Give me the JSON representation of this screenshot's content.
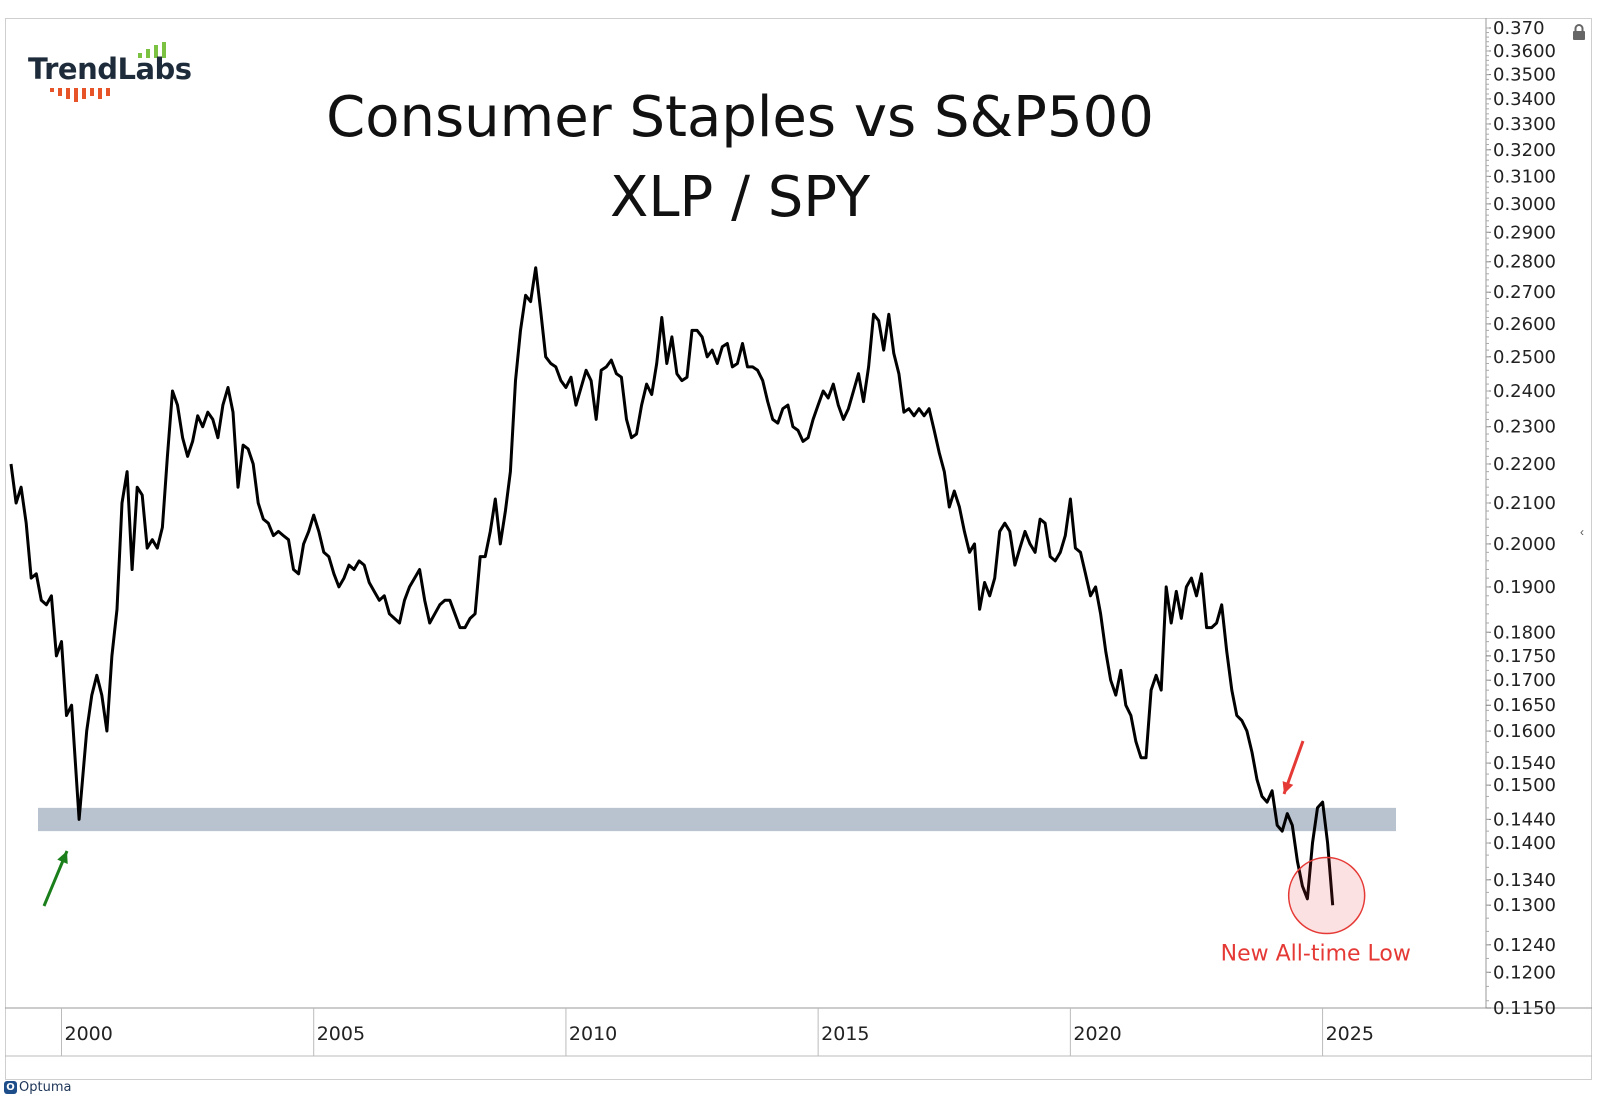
{
  "brand": {
    "logo_text": "TrendLabs",
    "footer": "Optuma"
  },
  "title": {
    "line1": "Consumer Staples vs S&P500",
    "line2": "XLP / SPY"
  },
  "colors": {
    "line": "#000000",
    "band": "#b9c3cf",
    "highlight_red": "#e53935",
    "arrow_green": "#1a7f1a",
    "logo_bars_green": "#7cc242",
    "logo_bars_orange": "#e8542a"
  },
  "icons": {
    "lock": "lock-icon",
    "collapse": "chevron-left-icon"
  },
  "annotations": {
    "all_time_low": "New All-time Low"
  },
  "chart_data": {
    "type": "line",
    "title": "Consumer Staples vs S&P500 XLP / SPY",
    "y_scale": "log",
    "ylim": [
      0.115,
      0.37
    ],
    "xlim": [
      1998.9,
      2028.2
    ],
    "x_ticks": [
      "2000",
      "2005",
      "2010",
      "2015",
      "2020",
      "2025"
    ],
    "y_ticks": [
      "0.370",
      "0.3600",
      "0.3500",
      "0.3400",
      "0.3300",
      "0.3200",
      "0.3100",
      "0.3000",
      "0.2900",
      "0.2800",
      "0.2700",
      "0.2600",
      "0.2500",
      "0.2400",
      "0.2300",
      "0.2200",
      "0.2100",
      "0.2000",
      "0.1900",
      "0.1800",
      "0.1750",
      "0.1700",
      "0.1650",
      "0.1600",
      "0.1540",
      "0.1500",
      "0.1440",
      "0.1400",
      "0.1340",
      "0.1300",
      "0.1240",
      "0.1200",
      "0.1150"
    ],
    "grid": false,
    "support_band": [
      0.142,
      0.146
    ],
    "series": [
      {
        "points": [
          [
            1999.0,
            0.22
          ],
          [
            1999.1,
            0.21
          ],
          [
            1999.2,
            0.214
          ],
          [
            1999.3,
            0.205
          ],
          [
            1999.4,
            0.192
          ],
          [
            1999.5,
            0.193
          ],
          [
            1999.6,
            0.187
          ],
          [
            1999.7,
            0.186
          ],
          [
            1999.8,
            0.188
          ],
          [
            1999.9,
            0.175
          ],
          [
            2000.0,
            0.178
          ],
          [
            2000.1,
            0.163
          ],
          [
            2000.2,
            0.165
          ],
          [
            2000.35,
            0.144
          ],
          [
            2000.5,
            0.16
          ],
          [
            2000.6,
            0.167
          ],
          [
            2000.7,
            0.171
          ],
          [
            2000.8,
            0.167
          ],
          [
            2000.9,
            0.16
          ],
          [
            2001.0,
            0.175
          ],
          [
            2001.1,
            0.185
          ],
          [
            2001.2,
            0.21
          ],
          [
            2001.3,
            0.218
          ],
          [
            2001.4,
            0.194
          ],
          [
            2001.5,
            0.214
          ],
          [
            2001.6,
            0.212
          ],
          [
            2001.7,
            0.199
          ],
          [
            2001.8,
            0.201
          ],
          [
            2001.9,
            0.199
          ],
          [
            2002.0,
            0.204
          ],
          [
            2002.1,
            0.222
          ],
          [
            2002.2,
            0.24
          ],
          [
            2002.3,
            0.236
          ],
          [
            2002.4,
            0.227
          ],
          [
            2002.5,
            0.222
          ],
          [
            2002.6,
            0.226
          ],
          [
            2002.7,
            0.233
          ],
          [
            2002.8,
            0.23
          ],
          [
            2002.9,
            0.234
          ],
          [
            2003.0,
            0.232
          ],
          [
            2003.1,
            0.227
          ],
          [
            2003.2,
            0.236
          ],
          [
            2003.3,
            0.241
          ],
          [
            2003.4,
            0.234
          ],
          [
            2003.5,
            0.214
          ],
          [
            2003.6,
            0.225
          ],
          [
            2003.7,
            0.224
          ],
          [
            2003.8,
            0.22
          ],
          [
            2003.9,
            0.21
          ],
          [
            2004.0,
            0.206
          ],
          [
            2004.1,
            0.205
          ],
          [
            2004.2,
            0.202
          ],
          [
            2004.3,
            0.203
          ],
          [
            2004.4,
            0.202
          ],
          [
            2004.5,
            0.201
          ],
          [
            2004.6,
            0.194
          ],
          [
            2004.7,
            0.193
          ],
          [
            2004.8,
            0.2
          ],
          [
            2004.9,
            0.203
          ],
          [
            2005.0,
            0.207
          ],
          [
            2005.1,
            0.203
          ],
          [
            2005.2,
            0.198
          ],
          [
            2005.3,
            0.197
          ],
          [
            2005.4,
            0.193
          ],
          [
            2005.5,
            0.19
          ],
          [
            2005.6,
            0.192
          ],
          [
            2005.7,
            0.195
          ],
          [
            2005.8,
            0.194
          ],
          [
            2005.9,
            0.196
          ],
          [
            2006.0,
            0.195
          ],
          [
            2006.1,
            0.191
          ],
          [
            2006.2,
            0.189
          ],
          [
            2006.3,
            0.187
          ],
          [
            2006.4,
            0.188
          ],
          [
            2006.5,
            0.184
          ],
          [
            2006.6,
            0.183
          ],
          [
            2006.7,
            0.182
          ],
          [
            2006.8,
            0.187
          ],
          [
            2006.9,
            0.19
          ],
          [
            2007.0,
            0.192
          ],
          [
            2007.1,
            0.194
          ],
          [
            2007.2,
            0.187
          ],
          [
            2007.3,
            0.182
          ],
          [
            2007.4,
            0.184
          ],
          [
            2007.5,
            0.186
          ],
          [
            2007.6,
            0.187
          ],
          [
            2007.7,
            0.187
          ],
          [
            2007.8,
            0.184
          ],
          [
            2007.9,
            0.181
          ],
          [
            2008.0,
            0.181
          ],
          [
            2008.1,
            0.183
          ],
          [
            2008.2,
            0.184
          ],
          [
            2008.3,
            0.197
          ],
          [
            2008.4,
            0.197
          ],
          [
            2008.5,
            0.203
          ],
          [
            2008.6,
            0.211
          ],
          [
            2008.7,
            0.2
          ],
          [
            2008.8,
            0.208
          ],
          [
            2008.9,
            0.218
          ],
          [
            2009.0,
            0.243
          ],
          [
            2009.1,
            0.258
          ],
          [
            2009.2,
            0.269
          ],
          [
            2009.3,
            0.267
          ],
          [
            2009.4,
            0.278
          ],
          [
            2009.5,
            0.264
          ],
          [
            2009.6,
            0.25
          ],
          [
            2009.7,
            0.248
          ],
          [
            2009.8,
            0.247
          ],
          [
            2009.9,
            0.243
          ],
          [
            2010.0,
            0.241
          ],
          [
            2010.1,
            0.244
          ],
          [
            2010.2,
            0.236
          ],
          [
            2010.3,
            0.241
          ],
          [
            2010.4,
            0.246
          ],
          [
            2010.5,
            0.243
          ],
          [
            2010.6,
            0.232
          ],
          [
            2010.7,
            0.246
          ],
          [
            2010.8,
            0.247
          ],
          [
            2010.9,
            0.249
          ],
          [
            2011.0,
            0.245
          ],
          [
            2011.1,
            0.244
          ],
          [
            2011.2,
            0.232
          ],
          [
            2011.3,
            0.227
          ],
          [
            2011.4,
            0.228
          ],
          [
            2011.5,
            0.236
          ],
          [
            2011.6,
            0.242
          ],
          [
            2011.7,
            0.239
          ],
          [
            2011.8,
            0.248
          ],
          [
            2011.9,
            0.262
          ],
          [
            2012.0,
            0.248
          ],
          [
            2012.1,
            0.256
          ],
          [
            2012.2,
            0.245
          ],
          [
            2012.3,
            0.243
          ],
          [
            2012.4,
            0.244
          ],
          [
            2012.5,
            0.258
          ],
          [
            2012.6,
            0.258
          ],
          [
            2012.7,
            0.256
          ],
          [
            2012.8,
            0.25
          ],
          [
            2012.9,
            0.252
          ],
          [
            2013.0,
            0.248
          ],
          [
            2013.1,
            0.253
          ],
          [
            2013.2,
            0.254
          ],
          [
            2013.3,
            0.247
          ],
          [
            2013.4,
            0.248
          ],
          [
            2013.5,
            0.254
          ],
          [
            2013.6,
            0.247
          ],
          [
            2013.7,
            0.247
          ],
          [
            2013.8,
            0.246
          ],
          [
            2013.9,
            0.243
          ],
          [
            2014.0,
            0.237
          ],
          [
            2014.1,
            0.232
          ],
          [
            2014.2,
            0.231
          ],
          [
            2014.3,
            0.235
          ],
          [
            2014.4,
            0.236
          ],
          [
            2014.5,
            0.23
          ],
          [
            2014.6,
            0.229
          ],
          [
            2014.7,
            0.226
          ],
          [
            2014.8,
            0.227
          ],
          [
            2014.9,
            0.232
          ],
          [
            2015.0,
            0.236
          ],
          [
            2015.1,
            0.24
          ],
          [
            2015.2,
            0.238
          ],
          [
            2015.3,
            0.242
          ],
          [
            2015.4,
            0.236
          ],
          [
            2015.5,
            0.232
          ],
          [
            2015.6,
            0.235
          ],
          [
            2015.7,
            0.24
          ],
          [
            2015.8,
            0.245
          ],
          [
            2015.9,
            0.237
          ],
          [
            2016.0,
            0.247
          ],
          [
            2016.1,
            0.263
          ],
          [
            2016.2,
            0.261
          ],
          [
            2016.3,
            0.252
          ],
          [
            2016.4,
            0.263
          ],
          [
            2016.5,
            0.251
          ],
          [
            2016.6,
            0.245
          ],
          [
            2016.7,
            0.234
          ],
          [
            2016.8,
            0.235
          ],
          [
            2016.9,
            0.233
          ],
          [
            2017.0,
            0.235
          ],
          [
            2017.1,
            0.233
          ],
          [
            2017.2,
            0.235
          ],
          [
            2017.3,
            0.229
          ],
          [
            2017.4,
            0.223
          ],
          [
            2017.5,
            0.218
          ],
          [
            2017.6,
            0.209
          ],
          [
            2017.7,
            0.213
          ],
          [
            2017.8,
            0.209
          ],
          [
            2017.9,
            0.203
          ],
          [
            2018.0,
            0.198
          ],
          [
            2018.1,
            0.2
          ],
          [
            2018.2,
            0.185
          ],
          [
            2018.3,
            0.191
          ],
          [
            2018.4,
            0.188
          ],
          [
            2018.5,
            0.192
          ],
          [
            2018.6,
            0.203
          ],
          [
            2018.7,
            0.205
          ],
          [
            2018.8,
            0.203
          ],
          [
            2018.9,
            0.195
          ],
          [
            2019.0,
            0.199
          ],
          [
            2019.1,
            0.203
          ],
          [
            2019.2,
            0.2
          ],
          [
            2019.3,
            0.198
          ],
          [
            2019.4,
            0.206
          ],
          [
            2019.5,
            0.205
          ],
          [
            2019.6,
            0.197
          ],
          [
            2019.7,
            0.196
          ],
          [
            2019.8,
            0.198
          ],
          [
            2019.9,
            0.202
          ],
          [
            2020.0,
            0.211
          ],
          [
            2020.1,
            0.199
          ],
          [
            2020.2,
            0.198
          ],
          [
            2020.3,
            0.193
          ],
          [
            2020.4,
            0.188
          ],
          [
            2020.5,
            0.19
          ],
          [
            2020.6,
            0.184
          ],
          [
            2020.7,
            0.176
          ],
          [
            2020.8,
            0.17
          ],
          [
            2020.9,
            0.167
          ],
          [
            2021.0,
            0.172
          ],
          [
            2021.1,
            0.165
          ],
          [
            2021.2,
            0.163
          ],
          [
            2021.3,
            0.158
          ],
          [
            2021.4,
            0.155
          ],
          [
            2021.5,
            0.155
          ],
          [
            2021.6,
            0.168
          ],
          [
            2021.7,
            0.171
          ],
          [
            2021.8,
            0.168
          ],
          [
            2021.9,
            0.19
          ],
          [
            2022.0,
            0.182
          ],
          [
            2022.1,
            0.189
          ],
          [
            2022.2,
            0.183
          ],
          [
            2022.3,
            0.19
          ],
          [
            2022.4,
            0.192
          ],
          [
            2022.5,
            0.188
          ],
          [
            2022.6,
            0.193
          ],
          [
            2022.7,
            0.181
          ],
          [
            2022.8,
            0.181
          ],
          [
            2022.9,
            0.182
          ],
          [
            2023.0,
            0.186
          ],
          [
            2023.1,
            0.176
          ],
          [
            2023.2,
            0.168
          ],
          [
            2023.3,
            0.163
          ],
          [
            2023.4,
            0.162
          ],
          [
            2023.5,
            0.16
          ],
          [
            2023.6,
            0.156
          ],
          [
            2023.7,
            0.151
          ],
          [
            2023.8,
            0.148
          ],
          [
            2023.9,
            0.147
          ],
          [
            2024.0,
            0.149
          ],
          [
            2024.1,
            0.143
          ],
          [
            2024.2,
            0.142
          ],
          [
            2024.3,
            0.145
          ],
          [
            2024.4,
            0.143
          ],
          [
            2024.5,
            0.137
          ],
          [
            2024.6,
            0.133
          ],
          [
            2024.7,
            0.131
          ],
          [
            2024.8,
            0.14
          ],
          [
            2024.9,
            0.146
          ],
          [
            2025.0,
            0.147
          ],
          [
            2025.1,
            0.14
          ],
          [
            2025.2,
            0.13
          ]
        ]
      }
    ]
  }
}
